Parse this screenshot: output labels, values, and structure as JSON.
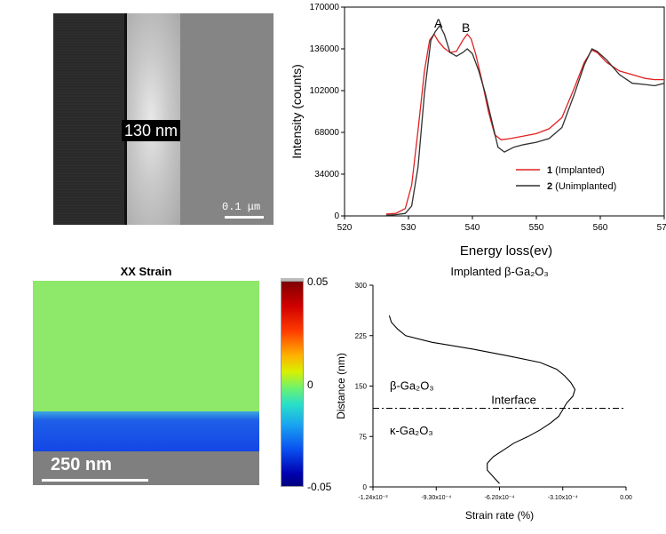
{
  "tem_image": {
    "label": "130 nm",
    "scale_bar": "0.1 μm"
  },
  "strain_map": {
    "title": "XX Strain",
    "scale_label": "250 nm",
    "colorbar_ticks": [
      "0.05",
      "0",
      "-0.05"
    ]
  },
  "chart_data": [
    {
      "type": "line",
      "title": "",
      "xlabel": "Energy loss(ev)",
      "ylabel": "Intensity (counts)",
      "xlim": [
        520,
        570
      ],
      "ylim": [
        0,
        170000
      ],
      "x_ticks": [
        "520",
        "530",
        "540",
        "550",
        "560",
        "570"
      ],
      "y_ticks": [
        "0",
        "34000",
        "68000",
        "102000",
        "136000",
        "170000"
      ],
      "annotations": [
        "A",
        "B"
      ],
      "legend_position": "lower-right",
      "series": [
        {
          "name": "1 (Implanted)",
          "legend_num": "1",
          "legend_text": " (Implanted)",
          "color": "#e02020",
          "points": [
            [
              526.5,
              1500
            ],
            [
              528,
              2000
            ],
            [
              529.5,
              6000
            ],
            [
              530.5,
              25000
            ],
            [
              531.5,
              70000
            ],
            [
              532.5,
              118000
            ],
            [
              533.3,
              143000
            ],
            [
              534,
              148000
            ],
            [
              534.7,
              142000
            ],
            [
              535.5,
              137000
            ],
            [
              536.5,
              133000
            ],
            [
              537.5,
              134000
            ],
            [
              538.5,
              143000
            ],
            [
              539.2,
              148000
            ],
            [
              539.8,
              144000
            ],
            [
              540.5,
              132000
            ],
            [
              541.5,
              110000
            ],
            [
              542.5,
              85000
            ],
            [
              543.5,
              66000
            ],
            [
              544.5,
              62000
            ],
            [
              546,
              63000
            ],
            [
              548,
              65000
            ],
            [
              550,
              67000
            ],
            [
              552,
              71000
            ],
            [
              554,
              80000
            ],
            [
              556,
              105000
            ],
            [
              557.5,
              125000
            ],
            [
              558.7,
              135000
            ],
            [
              559.5,
              133000
            ],
            [
              561,
              125000
            ],
            [
              563,
              118000
            ],
            [
              565,
              115000
            ],
            [
              567,
              112000
            ],
            [
              568.5,
              111000
            ],
            [
              570,
              111000
            ]
          ]
        },
        {
          "name": "2 (Unimplanted)",
          "legend_num": "2",
          "legend_text": " (Unimplanted)",
          "color": "#303030",
          "points": [
            [
              526.5,
              500
            ],
            [
              528,
              1000
            ],
            [
              529.5,
              2000
            ],
            [
              530.5,
              8000
            ],
            [
              531.5,
              40000
            ],
            [
              532.5,
              100000
            ],
            [
              533.5,
              143000
            ],
            [
              534.2,
              150000
            ],
            [
              534.9,
              155000
            ],
            [
              535.6,
              148000
            ],
            [
              536.5,
              133000
            ],
            [
              537.5,
              130000
            ],
            [
              538.5,
              133000
            ],
            [
              539.2,
              136000
            ],
            [
              540,
              132000
            ],
            [
              541,
              118000
            ],
            [
              542,
              100000
            ],
            [
              543,
              78000
            ],
            [
              544,
              56000
            ],
            [
              545,
              52000
            ],
            [
              546.5,
              56000
            ],
            [
              548,
              58000
            ],
            [
              550,
              60000
            ],
            [
              552,
              63000
            ],
            [
              554,
              72000
            ],
            [
              556,
              100000
            ],
            [
              557.5,
              123000
            ],
            [
              558.7,
              136000
            ],
            [
              559.5,
              134000
            ],
            [
              561,
              127000
            ],
            [
              563,
              115000
            ],
            [
              565,
              108000
            ],
            [
              567,
              107000
            ],
            [
              568.5,
              106000
            ],
            [
              570,
              108000
            ]
          ]
        }
      ]
    },
    {
      "type": "line",
      "title": "Implanted β-Ga₂O₃",
      "xlabel": "Strain rate (%)",
      "ylabel": "Distance (nm)",
      "xlim": [
        -0.00124,
        0
      ],
      "ylim": [
        0,
        300
      ],
      "x_ticks": [
        {
          "value": -0.00124,
          "label": "-1.24x10⁻³"
        },
        {
          "value": -0.00093,
          "label": "-9.30x10⁻⁴"
        },
        {
          "value": -0.00062,
          "label": "-6.20x10⁻⁴"
        },
        {
          "value": -0.00031,
          "label": "-3.10x10⁻⁴"
        },
        {
          "value": 0,
          "label": "0.00"
        }
      ],
      "y_ticks": [
        "0",
        "75",
        "150",
        "225",
        "300"
      ],
      "interface_y": 117,
      "interface_label": "Interface",
      "region_labels": [
        "β-Ga₂O₃",
        "κ-Ga₂O₃"
      ],
      "series": [
        {
          "name": "",
          "color": "#000000",
          "points": [
            [
              -0.00062,
              5
            ],
            [
              -0.00065,
              15
            ],
            [
              -0.00068,
              25
            ],
            [
              -0.00068,
              35
            ],
            [
              -0.00065,
              45
            ],
            [
              -0.0006,
              55
            ],
            [
              -0.00055,
              65
            ],
            [
              -0.00048,
              75
            ],
            [
              -0.00042,
              85
            ],
            [
              -0.00037,
              95
            ],
            [
              -0.00033,
              105
            ],
            [
              -0.00031,
              115
            ],
            [
              -0.00029,
              125
            ],
            [
              -0.00026,
              135
            ],
            [
              -0.00025,
              145
            ],
            [
              -0.00027,
              155
            ],
            [
              -0.0003,
              165
            ],
            [
              -0.00034,
              175
            ],
            [
              -0.00042,
              185
            ],
            [
              -0.00058,
              195
            ],
            [
              -0.00075,
              205
            ],
            [
              -0.00095,
              215
            ],
            [
              -0.00108,
              225
            ],
            [
              -0.00112,
              235
            ],
            [
              -0.00115,
              245
            ],
            [
              -0.00116,
              255
            ]
          ]
        }
      ]
    }
  ]
}
